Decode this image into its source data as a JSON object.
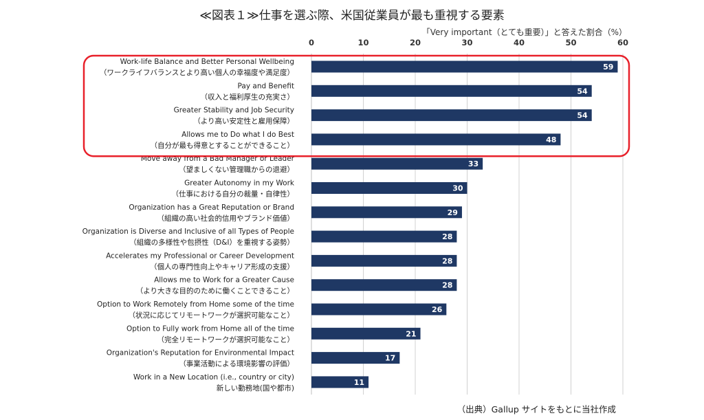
{
  "title": "≪図表１≫仕事を選ぶ際、米国従業員が最も重視する要素",
  "unit_label": "「Very important（とても重要）」と答えた割合（%）",
  "source": "（出典）Gallup サイトをもとに当社作成",
  "colors": {
    "bar": "#1f3864",
    "highlight": "#e8202a",
    "grid": "#d0d0d0"
  },
  "chart_data": {
    "type": "bar",
    "orientation": "horizontal",
    "xlim": [
      0,
      60
    ],
    "xticks": [
      "0",
      "10",
      "20",
      "30",
      "40",
      "50",
      "60"
    ],
    "grid": true,
    "highlight_top_n": 4,
    "categories": [
      [
        "Work-life Balance and Better Personal Wellbeing",
        "（ワークライフバランスとより高い個人の幸福度や満足度）"
      ],
      [
        "Pay and Benefit",
        "（収入と福利厚生の充実さ）"
      ],
      [
        "Greater Stability and Job Security",
        "（より高い安定性と雇用保障）"
      ],
      [
        "Allows me to Do what I do Best",
        "（自分が最も得意とすることができること）"
      ],
      [
        "Move away from a Bad Manager or Leader",
        "（望ましくない管理職からの退避）"
      ],
      [
        "Greater Autonomy in my Work",
        "（仕事における自分の裁量・自律性）"
      ],
      [
        "Organization has a Great Reputation or Brand",
        "（組織の高い社会的信用やブランド価値）"
      ],
      [
        "Organization is Diverse and Inclusive of all Types of People",
        "（組織の多様性や包摂性（D&I）を重視する姿勢）"
      ],
      [
        "Accelerates my Professional or Career Development",
        "（個人の専門性向上やキャリア形成の支援）"
      ],
      [
        "Allows me to Work for a Greater Cause",
        "（より大きな目的のために働くことできること）"
      ],
      [
        "Option to Work Remotely from Home some of the time",
        "（状況に応じてリモートワークが選択可能なこと）"
      ],
      [
        "Option to Fully work from Home all of the time",
        "（完全リモートワークが選択可能なこと）"
      ],
      [
        "Organization's Reputation for Environmental Impact",
        "（事業活動による環境影響の評価）"
      ],
      [
        "Work in a New Location (i.e., country or city)",
        "新しい勤務地(国や都市)"
      ]
    ],
    "values": [
      59,
      54,
      54,
      48,
      33,
      30,
      29,
      28,
      28,
      28,
      26,
      21,
      17,
      11
    ]
  }
}
